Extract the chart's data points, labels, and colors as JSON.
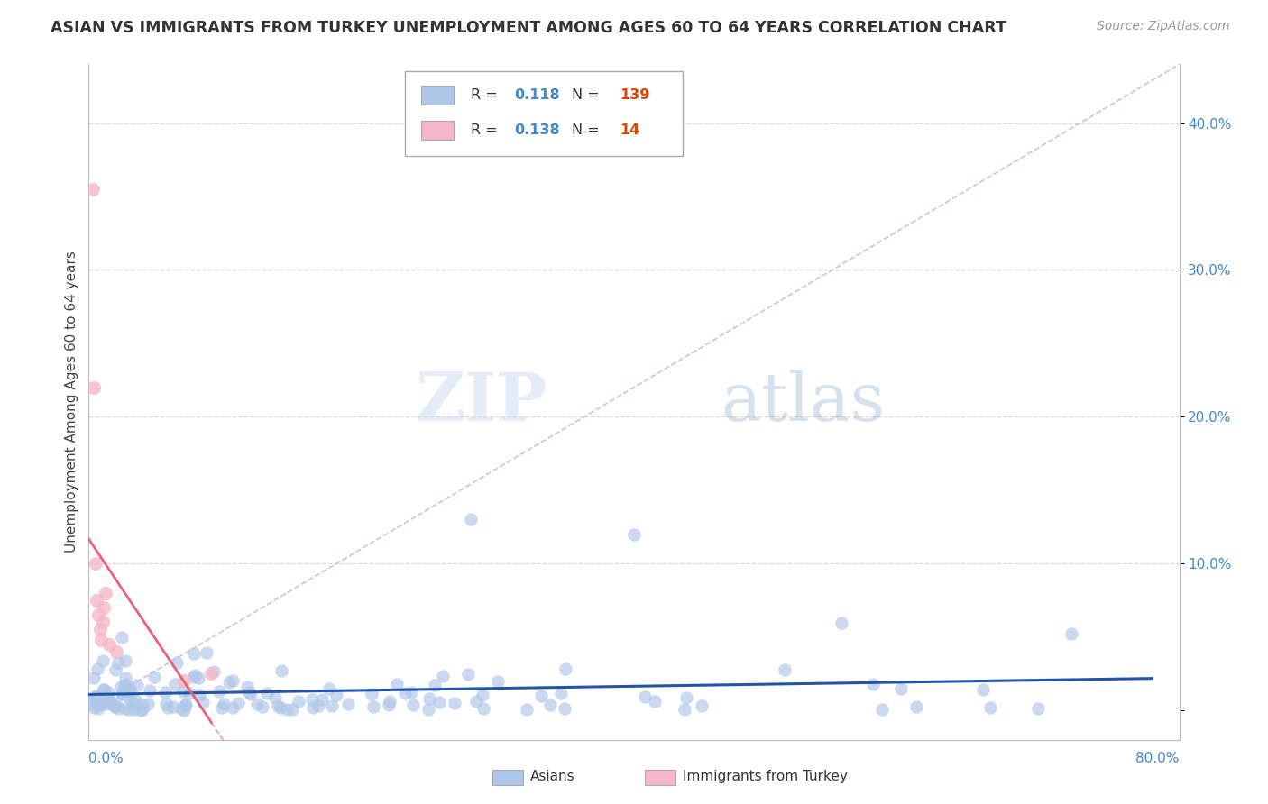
{
  "title": "ASIAN VS IMMIGRANTS FROM TURKEY UNEMPLOYMENT AMONG AGES 60 TO 64 YEARS CORRELATION CHART",
  "source": "Source: ZipAtlas.com",
  "ylabel": "Unemployment Among Ages 60 to 64 years",
  "xlim": [
    0,
    0.8
  ],
  "ylim": [
    -0.02,
    0.44
  ],
  "yticks": [
    0.0,
    0.1,
    0.2,
    0.3,
    0.4
  ],
  "ytick_labels": [
    "",
    "10.0%",
    "20.0%",
    "30.0%",
    "40.0%"
  ],
  "watermark_zip": "ZIP",
  "watermark_atlas": "atlas",
  "legend_r1": "0.118",
  "legend_n1": "139",
  "legend_r2": "0.138",
  "legend_n2": "14",
  "asian_color": "#aec6e8",
  "turkey_color": "#f4b8c8",
  "asian_line_color": "#2255aa",
  "turkey_line_color": "#e8607a",
  "ref_line_color": "#d8b8c0",
  "background_color": "#ffffff",
  "note_color": "#4488cc",
  "n_color": "#dd4400",
  "grid_color": "#d8d8d8",
  "spine_color": "#bbbbbb"
}
